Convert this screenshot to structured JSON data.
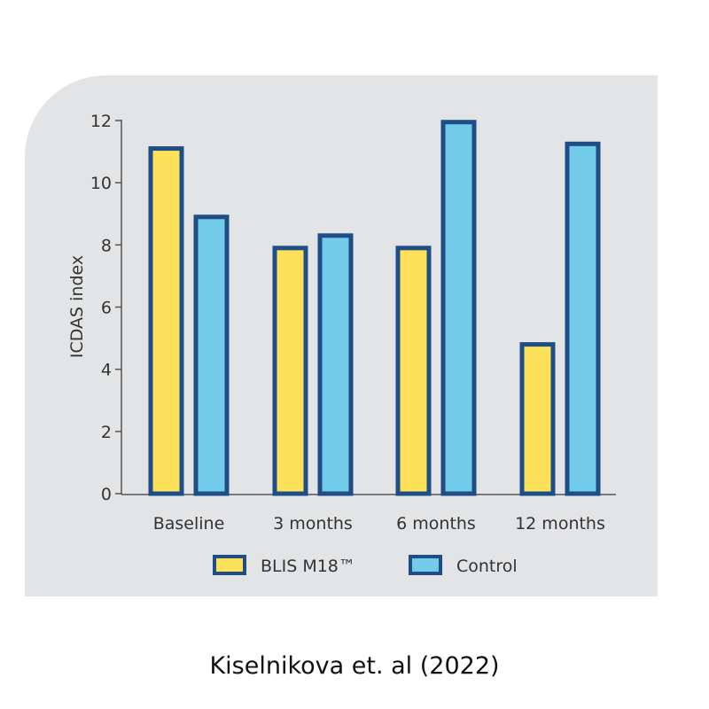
{
  "chart_data": {
    "type": "bar",
    "categories": [
      "Baseline",
      "3 months",
      "6 months",
      "12 months"
    ],
    "series": [
      {
        "name": "BLIS M18™",
        "values": [
          11.1,
          7.9,
          7.9,
          4.8
        ],
        "color": "#fde15a"
      },
      {
        "name": "Control",
        "values": [
          8.9,
          8.3,
          11.95,
          11.25
        ],
        "color": "#72cbe9"
      }
    ],
    "title": "",
    "xlabel": "",
    "ylabel": "ICDAS index",
    "ylim": [
      0,
      12
    ],
    "yticks": [
      0,
      2,
      4,
      6,
      8,
      10,
      12
    ],
    "grid": false,
    "legend": "bottom-center",
    "bar_border_color": "#1f4e86",
    "panel_color": "#e3e4e6"
  },
  "citation": "Kiselnikova et. al (2022)"
}
